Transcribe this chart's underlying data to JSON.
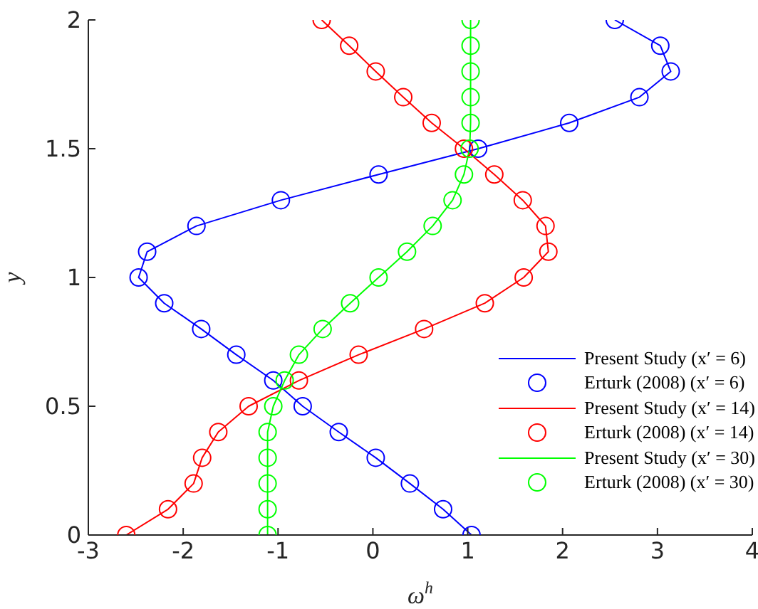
{
  "chart_data": {
    "type": "line",
    "xlabel": "ω$^{h}$",
    "ylabel": "y",
    "xlim": [
      -3,
      4
    ],
    "xticks": [
      -3,
      -2,
      -1,
      0,
      1,
      2,
      3,
      4
    ],
    "ylim": [
      0,
      2
    ],
    "yticks": [
      0,
      0.5,
      1,
      1.5,
      2
    ],
    "grid": false,
    "legend": "bottom right",
    "series": [
      {
        "name": "Present Study (x′ = 6)",
        "type": "line",
        "marker": "none",
        "color": "#0000ff",
        "x": [
          1.04,
          0.74,
          0.39,
          0.03,
          -0.36,
          -0.74,
          -1.05,
          -1.44,
          -1.81,
          -2.2,
          -2.47,
          -2.38,
          -1.86,
          -0.97,
          0.06,
          1.11,
          2.07,
          2.81,
          3.14,
          3.03,
          2.55
        ],
        "values": [
          0,
          0.1,
          0.2,
          0.3,
          0.4,
          0.5,
          0.6,
          0.7,
          0.8,
          0.9,
          1,
          1.1,
          1.2,
          1.3,
          1.4,
          1.5,
          1.6,
          1.7,
          1.8,
          1.9,
          2
        ]
      },
      {
        "name": "Erturk (2008) (x′ = 6)",
        "type": "scatter",
        "marker": "circle",
        "color": "#0000ff",
        "x": [
          1.04,
          0.74,
          0.39,
          0.03,
          -0.36,
          -0.74,
          -1.05,
          -1.44,
          -1.81,
          -2.2,
          -2.47,
          -2.38,
          -1.86,
          -0.97,
          0.06,
          1.11,
          2.07,
          2.81,
          3.14,
          3.03,
          2.55
        ],
        "values": [
          0,
          0.1,
          0.2,
          0.3,
          0.4,
          0.5,
          0.6,
          0.7,
          0.8,
          0.9,
          1,
          1.1,
          1.2,
          1.3,
          1.4,
          1.5,
          1.6,
          1.7,
          1.8,
          1.9,
          2
        ]
      },
      {
        "name": "Present Study (x′ = 14)",
        "type": "line",
        "marker": "none",
        "color": "#ff0000",
        "x": [
          -2.6,
          -2.16,
          -1.89,
          -1.8,
          -1.63,
          -1.31,
          -0.78,
          -0.15,
          0.54,
          1.18,
          1.59,
          1.85,
          1.82,
          1.58,
          1.28,
          0.96,
          0.62,
          0.32,
          0.03,
          -0.25,
          -0.54
        ],
        "values": [
          0,
          0.1,
          0.2,
          0.3,
          0.4,
          0.5,
          0.6,
          0.7,
          0.8,
          0.9,
          1,
          1.1,
          1.2,
          1.3,
          1.4,
          1.5,
          1.6,
          1.7,
          1.8,
          1.9,
          2
        ]
      },
      {
        "name": "Erturk (2008) (x′ = 14)",
        "type": "scatter",
        "marker": "circle",
        "color": "#ff0000",
        "x": [
          -2.6,
          -2.16,
          -1.89,
          -1.8,
          -1.63,
          -1.31,
          -0.78,
          -0.15,
          0.54,
          1.18,
          1.59,
          1.85,
          1.82,
          1.58,
          1.28,
          0.96,
          0.62,
          0.32,
          0.03,
          -0.25,
          -0.54
        ],
        "values": [
          0,
          0.1,
          0.2,
          0.3,
          0.4,
          0.5,
          0.6,
          0.7,
          0.8,
          0.9,
          1,
          1.1,
          1.2,
          1.3,
          1.4,
          1.5,
          1.6,
          1.7,
          1.8,
          1.9,
          2
        ]
      },
      {
        "name": "Present Study (x′ = 30)",
        "type": "line",
        "marker": "none",
        "color": "#00ff00",
        "x": [
          -1.11,
          -1.11,
          -1.11,
          -1.11,
          -1.11,
          -1.05,
          -0.93,
          -0.78,
          -0.53,
          -0.24,
          0.06,
          0.36,
          0.63,
          0.84,
          0.96,
          1.02,
          1.03,
          1.03,
          1.03,
          1.03,
          1.03
        ],
        "values": [
          0,
          0.1,
          0.2,
          0.3,
          0.4,
          0.5,
          0.6,
          0.7,
          0.8,
          0.9,
          1,
          1.1,
          1.2,
          1.3,
          1.4,
          1.5,
          1.6,
          1.7,
          1.8,
          1.9,
          2
        ]
      },
      {
        "name": "Erturk (2008) (x′ = 30)",
        "type": "scatter",
        "marker": "circle",
        "color": "#00ff00",
        "x": [
          -1.11,
          -1.11,
          -1.11,
          -1.11,
          -1.11,
          -1.05,
          -0.93,
          -0.78,
          -0.53,
          -0.24,
          0.06,
          0.36,
          0.63,
          0.84,
          0.96,
          1.02,
          1.03,
          1.03,
          1.03,
          1.03,
          1.03
        ],
        "values": [
          0,
          0.1,
          0.2,
          0.3,
          0.4,
          0.5,
          0.6,
          0.7,
          0.8,
          0.9,
          1,
          1.1,
          1.2,
          1.3,
          1.4,
          1.5,
          1.6,
          1.7,
          1.8,
          1.9,
          2
        ]
      }
    ]
  }
}
